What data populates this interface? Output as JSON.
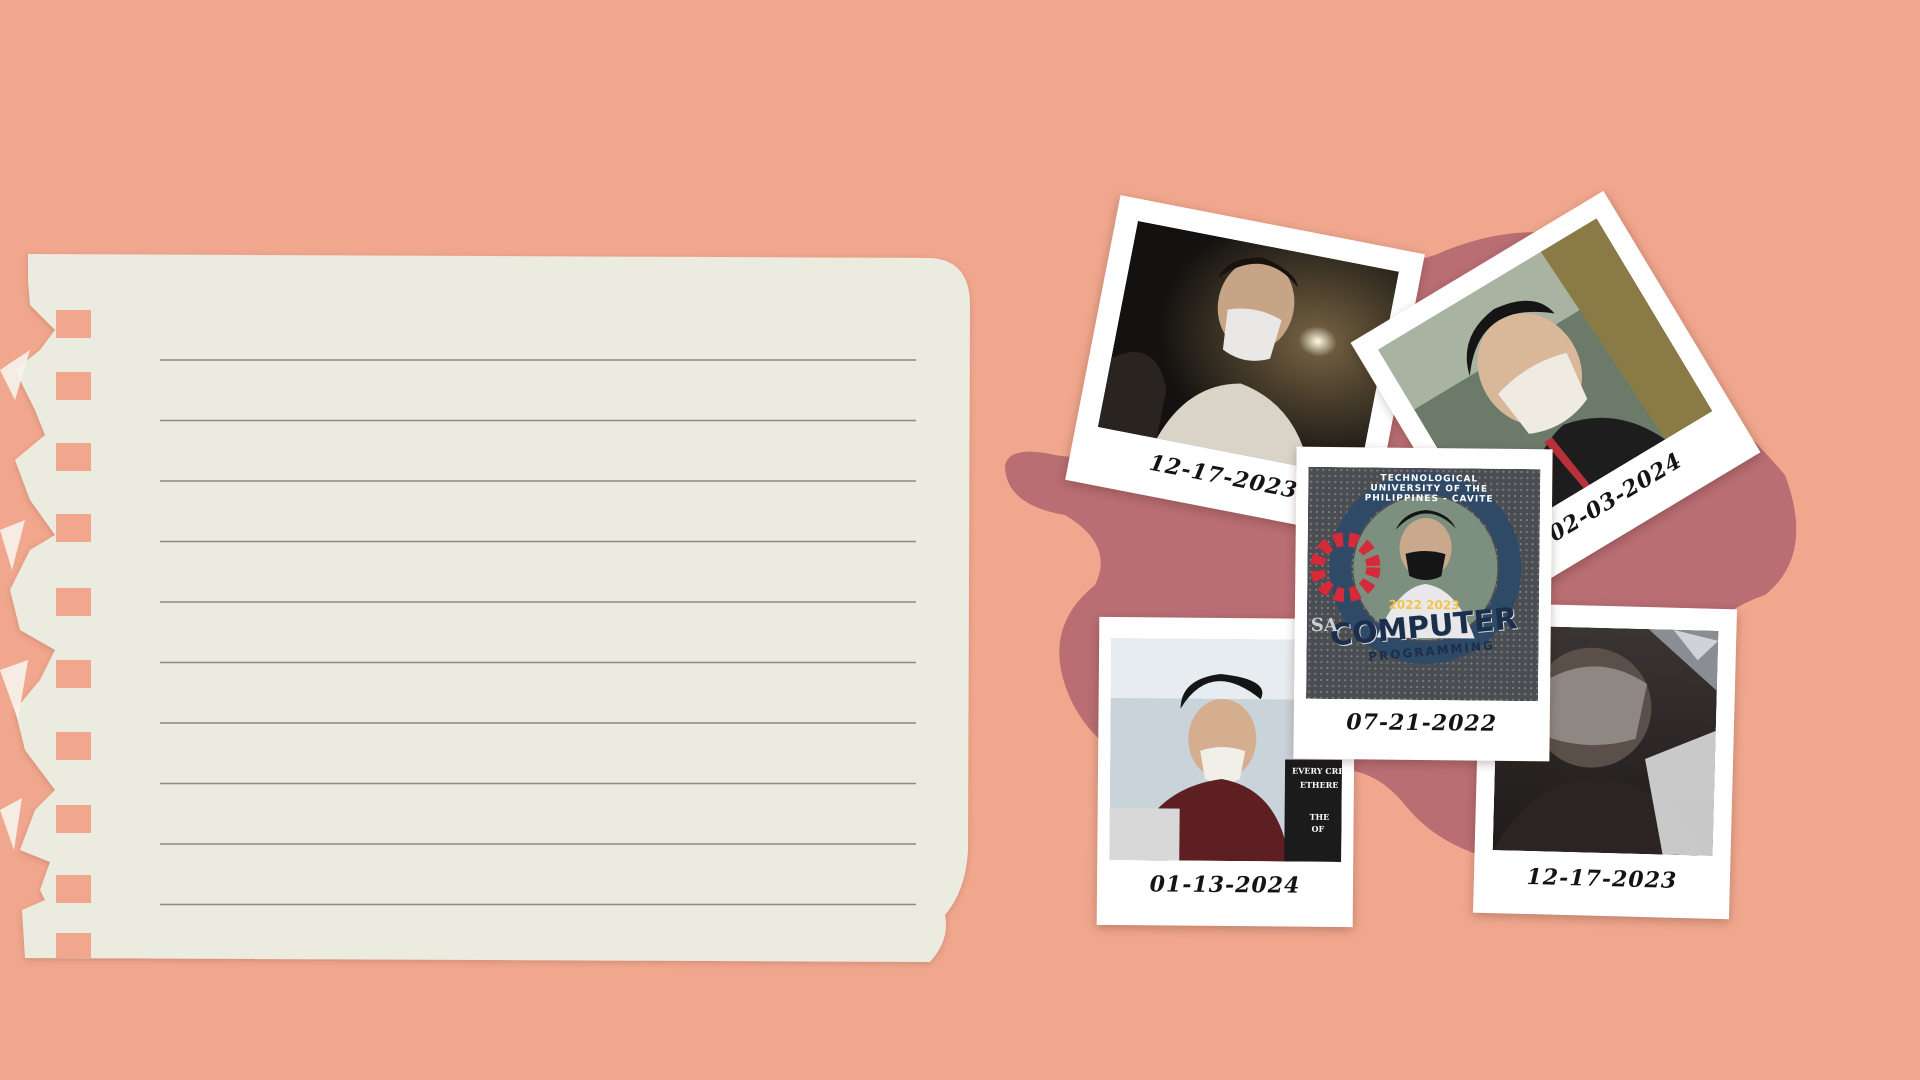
{
  "background_color": "#f0a78e",
  "paper_color": "#ecebdf",
  "blob_color": "#b86e73",
  "notebook": {
    "line_count": 10
  },
  "polaroids": [
    {
      "date": "12-17-2023",
      "photo": "night-selfie"
    },
    {
      "date": "02-03-2024",
      "photo": "outdoor-selfie"
    },
    {
      "date": "07-21-2022",
      "photo": "frame-selfie"
    },
    {
      "date": "01-13-2024",
      "photo": "event-selfie"
    },
    {
      "date": "12-17-2023",
      "photo": "blurred-selfie"
    }
  ],
  "frame_overlay": {
    "ring_text": "TECHNOLOGICAL UNIVERSITY OF THE PHILIPPINES - CAVITE",
    "years": "2022 2023",
    "title": "COMPUTER",
    "subtitle": "PROGRAMMING"
  },
  "sign_text": {
    "line1": "EVERY CREA",
    "line2": "ETHERE",
    "line3": "THE",
    "line4": "OF"
  },
  "left_sign_text": "SA"
}
